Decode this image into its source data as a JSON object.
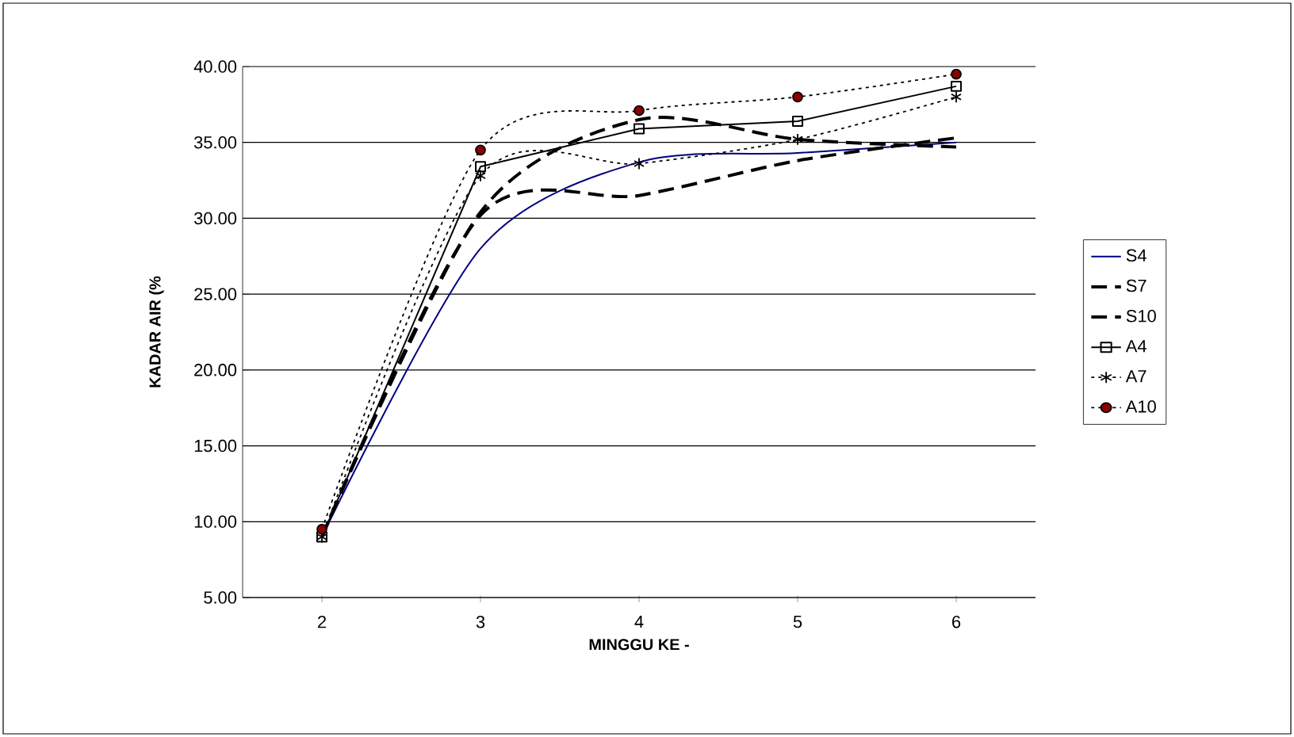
{
  "chart_data": {
    "type": "line",
    "xlabel": "MINGGU KE -",
    "ylabel": "KADAR AIR (%",
    "categories": [
      "2",
      "3",
      "4",
      "5",
      "6"
    ],
    "ylim": [
      5,
      40
    ],
    "yticks": [
      {
        "value": 5,
        "label": "5.00"
      },
      {
        "value": 10,
        "label": "10.00"
      },
      {
        "value": 15,
        "label": "15.00"
      },
      {
        "value": 20,
        "label": "20.00"
      },
      {
        "value": 25,
        "label": "25.00"
      },
      {
        "value": 30,
        "label": "30.00"
      },
      {
        "value": 35,
        "label": "35.00"
      },
      {
        "value": 40,
        "label": "40.00"
      }
    ],
    "grid": "y",
    "legend": "right",
    "series": [
      {
        "name": "S4",
        "color": "#000080",
        "line_style": "solid",
        "marker": "none",
        "values": [
          9.0,
          28.0,
          33.7,
          34.3,
          35.0
        ]
      },
      {
        "name": "S7",
        "color": "#000000",
        "line_style": "dashed",
        "marker": "none",
        "values": [
          9.0,
          30.2,
          31.5,
          33.8,
          35.3
        ]
      },
      {
        "name": "S10",
        "color": "#000000",
        "line_style": "dashed",
        "marker": "none",
        "values": [
          9.0,
          30.4,
          36.5,
          35.2,
          34.7
        ]
      },
      {
        "name": "A4",
        "color": "#000000",
        "line_style": "solid",
        "marker": "square",
        "values": [
          9.0,
          33.4,
          35.9,
          36.4,
          38.7
        ]
      },
      {
        "name": "A7",
        "color": "#000000",
        "line_style": "dotted",
        "marker": "cross",
        "values": [
          9.0,
          32.8,
          33.6,
          35.2,
          38.0
        ]
      },
      {
        "name": "A10",
        "color": "#8b0000",
        "line_style": "dotted",
        "marker": "circle",
        "values": [
          9.5,
          34.5,
          37.1,
          38.0,
          39.5
        ]
      }
    ]
  }
}
